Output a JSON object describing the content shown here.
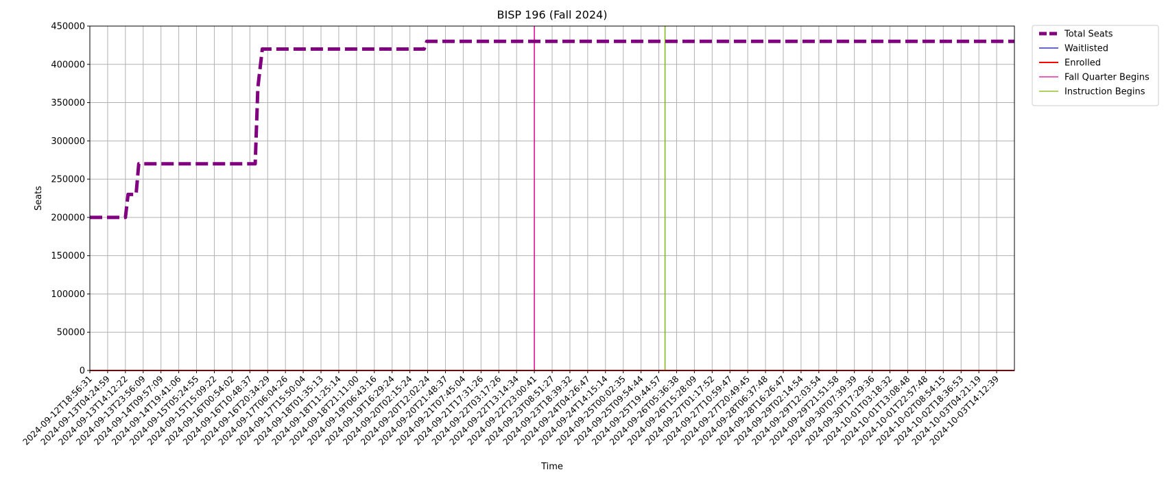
{
  "chart_data": {
    "type": "line",
    "title": "BISP 196 (Fall 2024)",
    "xlabel": "Time",
    "ylabel": "Seats",
    "ylim": [
      0,
      450000
    ],
    "yticks": [
      0,
      50000,
      100000,
      150000,
      200000,
      250000,
      300000,
      350000,
      400000,
      450000
    ],
    "grid": true,
    "legend_position": "outside-top-right",
    "categories": [
      "2024-09-12T18:56:31",
      "2024-09-13T04:24:59",
      "2024-09-13T14:12:22",
      "2024-09-13T23:56:09",
      "2024-09-14T09:57:09",
      "2024-09-14T19:41:06",
      "2024-09-15T05:24:55",
      "2024-09-15T15:09:22",
      "2024-09-16T00:54:02",
      "2024-09-16T10:48:37",
      "2024-09-16T20:34:29",
      "2024-09-17T06:04:26",
      "2024-09-17T15:50:04",
      "2024-09-18T01:35:13",
      "2024-09-18T11:25:14",
      "2024-09-18T21:11:00",
      "2024-09-19T06:43:16",
      "2024-09-19T16:29:24",
      "2024-09-20T02:15:24",
      "2024-09-20T12:02:24",
      "2024-09-20T21:48:37",
      "2024-09-21T07:45:04",
      "2024-09-21T17:31:26",
      "2024-09-22T03:17:26",
      "2024-09-22T13:14:34",
      "2024-09-22T23:00:41",
      "2024-09-23T08:51:27",
      "2024-09-23T18:39:32",
      "2024-09-24T04:26:47",
      "2024-09-24T14:15:14",
      "2024-09-25T00:02:35",
      "2024-09-25T09:54:44",
      "2024-09-25T19:44:57",
      "2024-09-26T05:36:38",
      "2024-09-26T15:28:09",
      "2024-09-27T01:17:52",
      "2024-09-27T10:59:47",
      "2024-09-27T20:49:45",
      "2024-09-28T06:37:48",
      "2024-09-28T16:26:47",
      "2024-09-29T02:14:54",
      "2024-09-29T12:03:54",
      "2024-09-29T21:51:58",
      "2024-09-30T07:39:39",
      "2024-09-30T17:29:36",
      "2024-10-01T03:18:32",
      "2024-10-01T13:08:48",
      "2024-10-01T22:57:48",
      "2024-10-02T08:54:15",
      "2024-10-02T18:36:53",
      "2024-10-03T04:21:19",
      "2024-10-03T14:12:39"
    ],
    "x_index_max": 52,
    "series": [
      {
        "name": "Total Seats",
        "color": "#800080",
        "style": "dashed-thick",
        "points": [
          [
            0,
            200000
          ],
          [
            2.0,
            200000
          ],
          [
            2.15,
            230000
          ],
          [
            2.6,
            230000
          ],
          [
            2.75,
            270000
          ],
          [
            9.3,
            270000
          ],
          [
            9.45,
            370000
          ],
          [
            9.7,
            420000
          ],
          [
            18.8,
            420000
          ],
          [
            18.95,
            430000
          ],
          [
            52,
            430000
          ]
        ]
      },
      {
        "name": "Waitlisted",
        "color": "#0000ff",
        "style": "solid-thin",
        "points": [
          [
            0,
            0
          ],
          [
            52,
            0
          ]
        ]
      },
      {
        "name": "Enrolled",
        "color": "#ff0000",
        "style": "solid",
        "points": [
          [
            0,
            0
          ],
          [
            52,
            0
          ]
        ]
      }
    ],
    "vlines": [
      {
        "name": "Fall Quarter Begins",
        "color": "#e00090",
        "x_index": 25.0
      },
      {
        "name": "Instruction Begins",
        "color": "#7cb800",
        "x_index": 32.35
      }
    ]
  }
}
